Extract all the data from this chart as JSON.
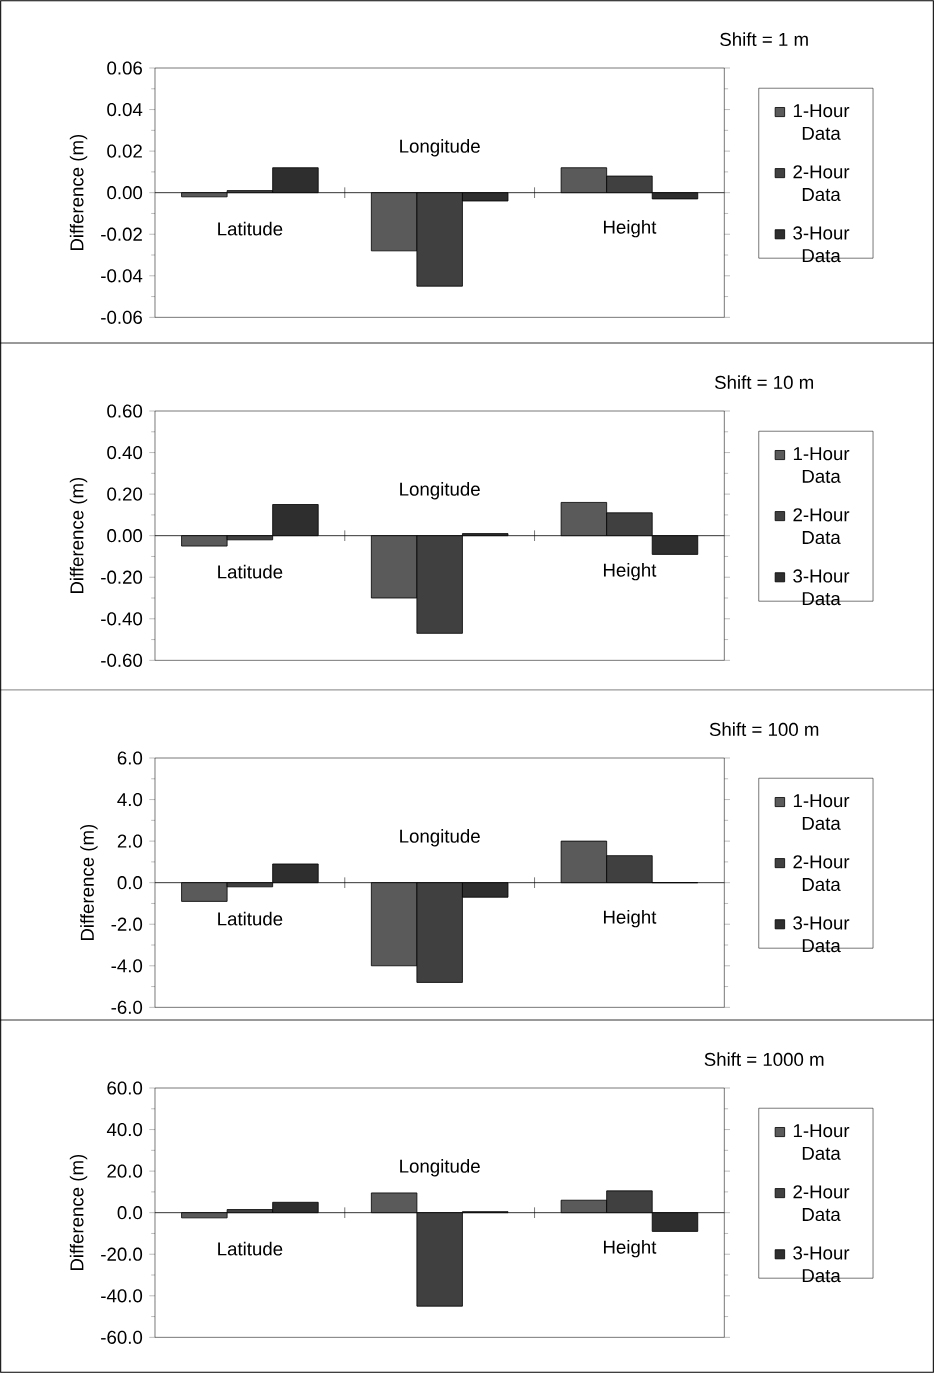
{
  "chart_data": [
    {
      "type": "bar",
      "title": "Shift = 1 m",
      "ylabel": "Difference (m)",
      "categories": [
        "Latitude",
        "Longitude",
        "Height"
      ],
      "legend": "right",
      "ylim": [
        -0.06,
        0.06
      ],
      "yticks": [
        {
          "value": -0.06,
          "label": "-0.06"
        },
        {
          "value": -0.04,
          "label": "-0.04"
        },
        {
          "value": -0.02,
          "label": "-0.02"
        },
        {
          "value": 0,
          "label": "0.00"
        },
        {
          "value": 0.02,
          "label": "0.02"
        },
        {
          "value": 0.04,
          "label": "0.04"
        },
        {
          "value": 0.06,
          "label": "0.06"
        }
      ],
      "series": [
        {
          "name": "1-Hour Data",
          "color": "#5a5a5a",
          "values": [
            -0.002,
            -0.028,
            0.012
          ]
        },
        {
          "name": "2-Hour Data",
          "color": "#404040",
          "values": [
            0.001,
            -0.045,
            0.008
          ]
        },
        {
          "name": "3-Hour Data",
          "color": "#2e2e2e",
          "values": [
            0.012,
            -0.004,
            -0.003
          ]
        }
      ]
    },
    {
      "type": "bar",
      "title": "Shift = 10 m",
      "ylabel": "Difference (m)",
      "categories": [
        "Latitude",
        "Longitude",
        "Height"
      ],
      "legend": "right",
      "ylim": [
        -0.6,
        0.6
      ],
      "yticks": [
        {
          "value": -0.6,
          "label": "-0.60"
        },
        {
          "value": -0.4,
          "label": "-0.40"
        },
        {
          "value": -0.2,
          "label": "-0.20"
        },
        {
          "value": 0,
          "label": "0.00"
        },
        {
          "value": 0.2,
          "label": "0.20"
        },
        {
          "value": 0.4,
          "label": "0.40"
        },
        {
          "value": 0.6,
          "label": "0.60"
        }
      ],
      "series": [
        {
          "name": "1-Hour Data",
          "color": "#5a5a5a",
          "values": [
            -0.05,
            -0.3,
            0.16
          ]
        },
        {
          "name": "2-Hour Data",
          "color": "#404040",
          "values": [
            -0.02,
            -0.47,
            0.11
          ]
        },
        {
          "name": "3-Hour Data",
          "color": "#2e2e2e",
          "values": [
            0.15,
            0.01,
            -0.09
          ]
        }
      ]
    },
    {
      "type": "bar",
      "title": "Shift = 100 m",
      "ylabel": "Difference (m)",
      "categories": [
        "Latitude",
        "Longitude",
        "Height"
      ],
      "legend": "right",
      "ylim": [
        -6,
        6
      ],
      "yticks": [
        {
          "value": -6,
          "label": "-6.0"
        },
        {
          "value": -4,
          "label": "-4.0"
        },
        {
          "value": -2,
          "label": "-2.0"
        },
        {
          "value": 0,
          "label": "0.0"
        },
        {
          "value": 2,
          "label": "2.0"
        },
        {
          "value": 4,
          "label": "4.0"
        },
        {
          "value": 6,
          "label": "6.0"
        }
      ],
      "series": [
        {
          "name": "1-Hour Data",
          "color": "#5a5a5a",
          "values": [
            -0.9,
            -4.0,
            2.0
          ]
        },
        {
          "name": "2-Hour Data",
          "color": "#404040",
          "values": [
            -0.2,
            -4.8,
            1.3
          ]
        },
        {
          "name": "3-Hour Data",
          "color": "#2e2e2e",
          "values": [
            0.9,
            -0.7,
            0
          ]
        }
      ]
    },
    {
      "type": "bar",
      "title": "Shift = 1000 m",
      "ylabel": "Difference (m)",
      "categories": [
        "Latitude",
        "Longitude",
        "Height"
      ],
      "legend": "right",
      "ylim": [
        -60,
        60
      ],
      "yticks": [
        {
          "value": -60,
          "label": "-60.0"
        },
        {
          "value": -40,
          "label": "-40.0"
        },
        {
          "value": -20,
          "label": "-20.0"
        },
        {
          "value": 0,
          "label": "0.0"
        },
        {
          "value": 20,
          "label": "20.0"
        },
        {
          "value": 40,
          "label": "40.0"
        },
        {
          "value": 60,
          "label": "60.0"
        }
      ],
      "series": [
        {
          "name": "1-Hour Data",
          "color": "#5a5a5a",
          "values": [
            -2.5,
            9.5,
            6
          ]
        },
        {
          "name": "2-Hour Data",
          "color": "#404040",
          "values": [
            1.5,
            -45,
            10.5
          ]
        },
        {
          "name": "3-Hour Data",
          "color": "#2e2e2e",
          "values": [
            5,
            0.5,
            -9
          ]
        }
      ]
    }
  ]
}
